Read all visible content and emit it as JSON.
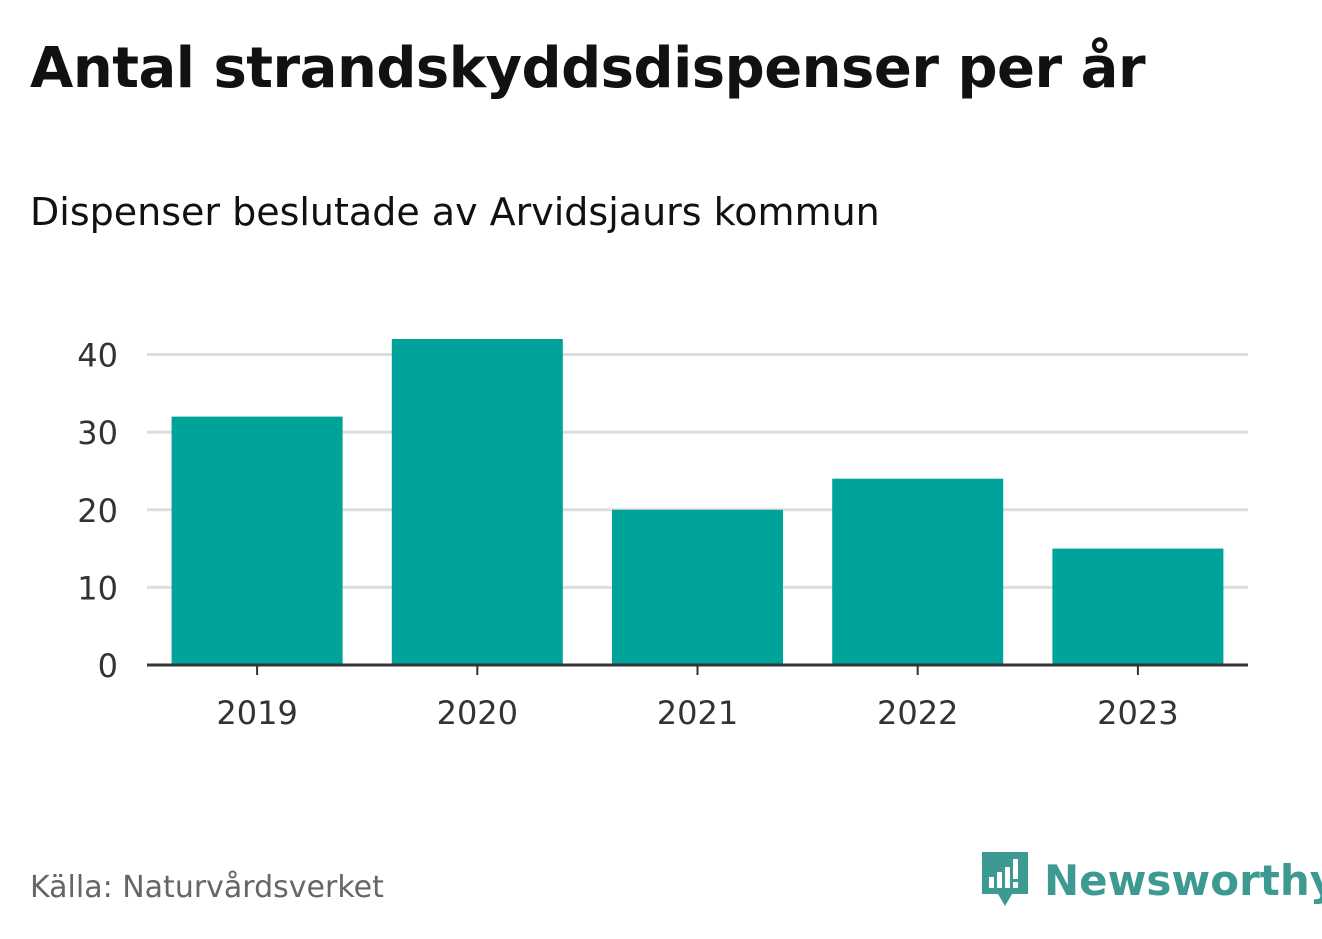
{
  "title": "Antal strandskyddsdispenser per år",
  "subtitle": "Dispenser beslutade av Arvidsjaurs kommun",
  "source": "Källa: Naturvårdsverket",
  "brand": {
    "name": "Newsworthy",
    "icon": "newsworthy-logo-icon",
    "color": "#3d9a93"
  },
  "colors": {
    "bar": "#00a39a",
    "grid": "#dddddd",
    "axis": "#333333",
    "tick_label": "#333333"
  },
  "chart_data": {
    "type": "bar",
    "title": "Antal strandskyddsdispenser per år",
    "subtitle": "Dispenser beslutade av Arvidsjaurs kommun",
    "categories": [
      "2019",
      "2020",
      "2021",
      "2022",
      "2023"
    ],
    "values": [
      32,
      42,
      20,
      24,
      15
    ],
    "xlabel": "",
    "ylabel": "",
    "ylim": [
      0,
      42
    ],
    "yticks": [
      0,
      10,
      20,
      30,
      40
    ],
    "ytick_labels": [
      "0",
      "10",
      "20",
      "30",
      "40"
    ],
    "grid": true,
    "legend": "none"
  }
}
